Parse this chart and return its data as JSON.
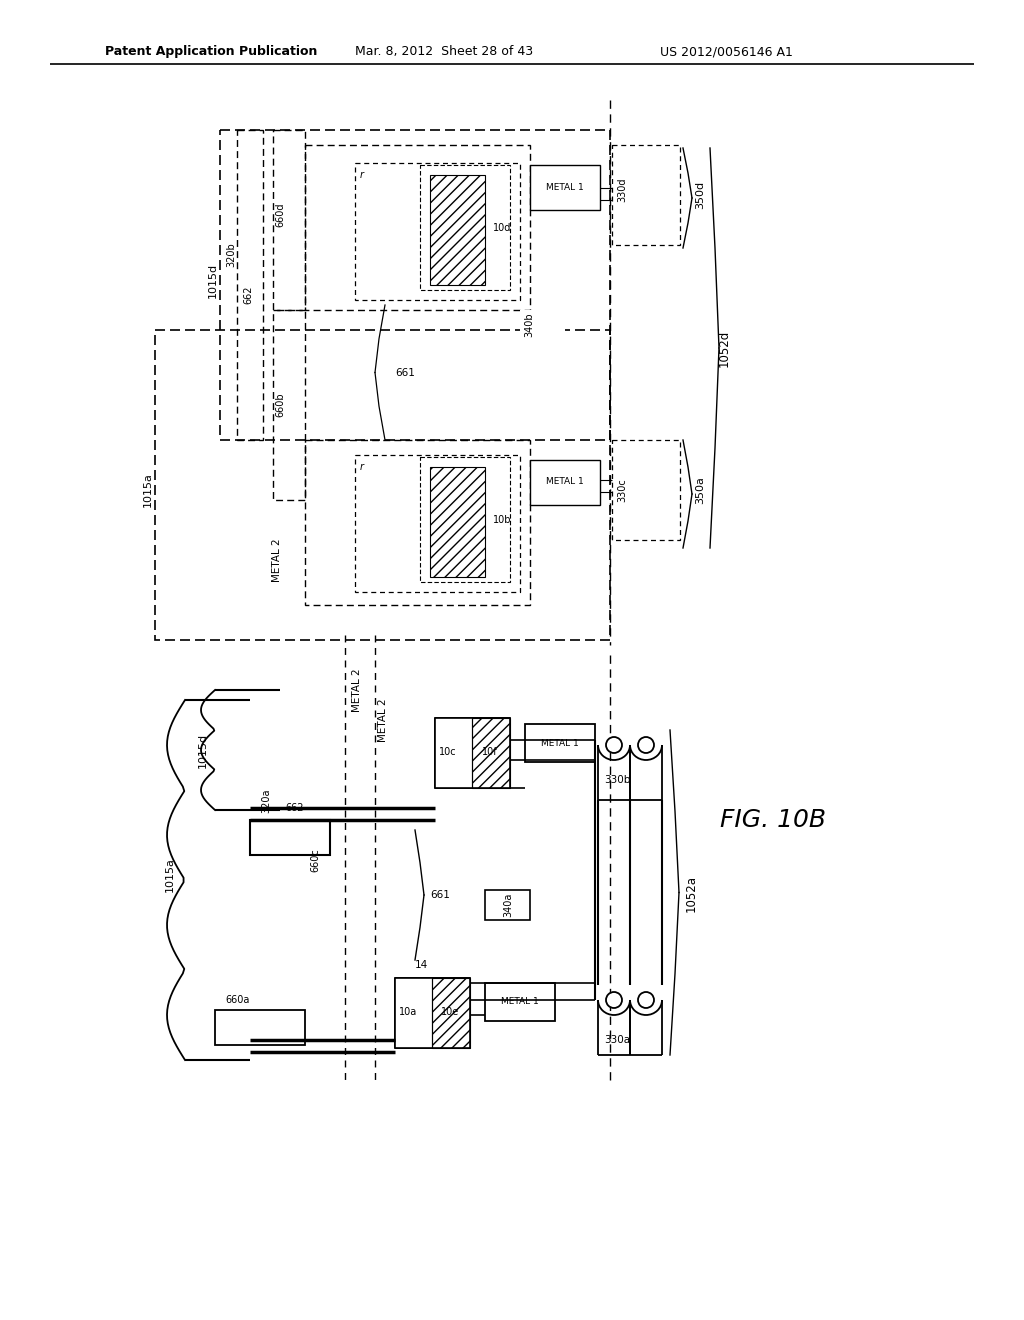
{
  "title": "FIG. 10B",
  "header_left": "Patent Application Publication",
  "header_mid": "Mar. 8, 2012  Sheet 28 of 43",
  "header_right": "US 2012/0056146 A1",
  "bg_color": "#ffffff",
  "fg_color": "#000000"
}
